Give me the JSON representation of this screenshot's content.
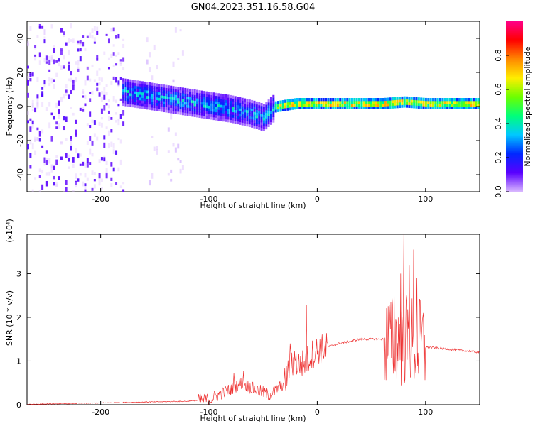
{
  "title": "GN04.2023.351.16.58.G04",
  "chart_data": [
    {
      "type": "heatmap",
      "xlabel": "Height of straight line (km)",
      "ylabel": "Frequency (Hz)",
      "xlim": [
        -268,
        150
      ],
      "ylim": [
        -50,
        50
      ],
      "x_ticks": [
        -200,
        -100,
        0,
        100
      ],
      "y_ticks": [
        -40,
        -20,
        0,
        20,
        40
      ],
      "colorbar": {
        "label": "Normalized spectral amplitude",
        "range": [
          0,
          1
        ],
        "ticks": [
          0.0,
          0.2,
          0.4,
          0.6,
          0.8
        ],
        "colors": [
          "#d9b8ff",
          "#5a00ff",
          "#0028ff",
          "#00c8ff",
          "#00ff7a",
          "#6cff00",
          "#ffee00",
          "#ff8800",
          "#ff0000",
          "#ff0088"
        ]
      },
      "ridge": {
        "x": [
          -180,
          -160,
          -140,
          -120,
          -100,
          -80,
          -60,
          -50,
          -40,
          -20,
          0,
          20,
          40,
          60,
          80,
          100,
          120,
          150
        ],
        "frequency_hz": [
          8,
          6,
          4,
          2,
          0,
          -2,
          -5,
          -7,
          -1,
          1,
          1,
          1,
          1,
          1,
          2,
          1,
          1,
          1
        ]
      },
      "noise_regions": [
        [
          -268,
          -178
        ],
        [
          -160,
          -148
        ],
        [
          -140,
          -124
        ]
      ]
    },
    {
      "type": "line",
      "xlabel": "Height of straight line (km)",
      "ylabel": "SNR (10 * v/v)",
      "y_multiplier": "(x10⁴)",
      "xlim": [
        -268,
        150
      ],
      "ylim": [
        0,
        3.9
      ],
      "x_ticks": [
        -200,
        -100,
        0,
        100
      ],
      "y_ticks": [
        0,
        1,
        2,
        3
      ],
      "color": "#ee3333",
      "envelope": {
        "x": [
          -268,
          -220,
          -160,
          -120,
          -100,
          -80,
          -70,
          -60,
          -50,
          -45,
          -40,
          -30,
          -25,
          -20,
          -15,
          -10,
          -5,
          0,
          20,
          40,
          60,
          65,
          70,
          75,
          80,
          85,
          90,
          95,
          100,
          110,
          130,
          150
        ],
        "y": [
          0.01,
          0.03,
          0.06,
          0.08,
          0.12,
          0.35,
          0.5,
          0.38,
          0.28,
          0.22,
          0.3,
          0.5,
          0.9,
          0.95,
          0.9,
          1.0,
          1.15,
          1.25,
          1.4,
          1.5,
          1.5,
          1.48,
          1.5,
          1.45,
          1.5,
          1.45,
          1.4,
          1.38,
          1.32,
          1.3,
          1.25,
          1.2
        ]
      },
      "spikes": [
        {
          "x": -77,
          "y": 0.72
        },
        {
          "x": -68,
          "y": 0.78
        },
        {
          "x": -25,
          "y": 1.4
        },
        {
          "x": -21,
          "y": 1.22
        },
        {
          "x": -10,
          "y": 2.28
        },
        {
          "x": 68,
          "y": 2.35
        },
        {
          "x": 71,
          "y": 2.6
        },
        {
          "x": 77,
          "y": 3.0
        },
        {
          "x": 80,
          "y": 3.9
        },
        {
          "x": 85,
          "y": 3.2
        },
        {
          "x": 89,
          "y": 3.55
        },
        {
          "x": 92,
          "y": 2.9
        }
      ]
    }
  ]
}
